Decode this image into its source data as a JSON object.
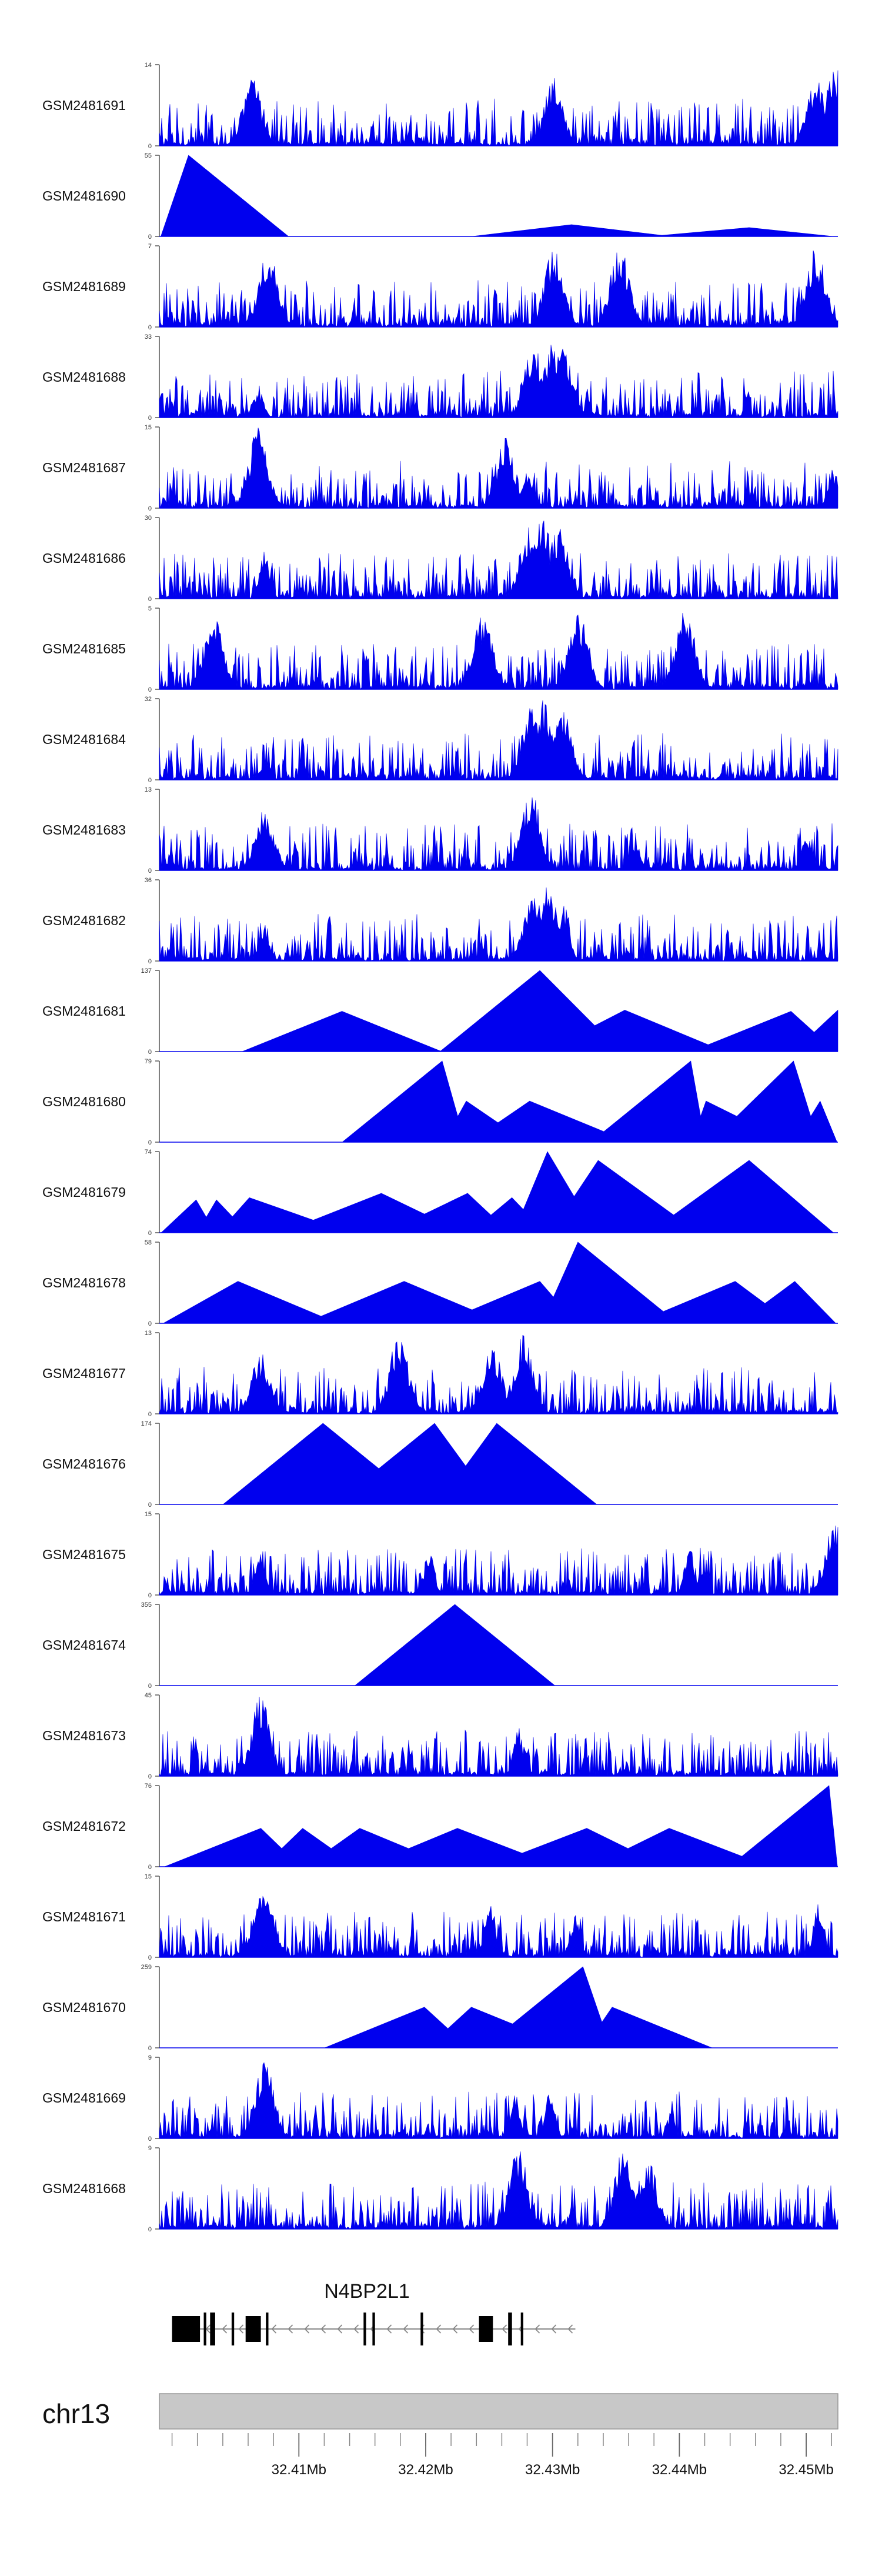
{
  "chart_data": {
    "type": "area",
    "title": "",
    "color": "#0000ee",
    "genome": {
      "chromosome": "chr13",
      "xlim_mb": [
        32.399,
        32.4525
      ],
      "xticks_mb": [
        32.41,
        32.42,
        32.43,
        32.44,
        32.45
      ],
      "xtick_labels": [
        "32.41Mb",
        "32.42Mb",
        "32.43Mb",
        "32.44Mb",
        "32.45Mb"
      ]
    },
    "tracks": [
      {
        "name": "GSM2481691",
        "ymax": 14,
        "ymin": 0,
        "peaks": [
          [
            32.4063,
            12
          ],
          [
            32.4301,
            12
          ],
          [
            32.4508,
            12
          ],
          [
            32.4523,
            14
          ]
        ],
        "dense": true
      },
      {
        "name": "GSM2481690",
        "ymax": 55,
        "ymin": 0,
        "peaks": [
          [
            32.4013,
            55
          ],
          [
            32.4315,
            8
          ],
          [
            32.4455,
            6
          ]
        ],
        "dense": false
      },
      {
        "name": "GSM2481689",
        "ymax": 7,
        "ymin": 0,
        "peaks": [
          [
            32.4076,
            7
          ],
          [
            32.4301,
            7
          ],
          [
            32.4353,
            7
          ],
          [
            32.4508,
            7
          ]
        ],
        "dense": true
      },
      {
        "name": "GSM2481688",
        "ymax": 33,
        "ymin": 0,
        "peaks": [
          [
            32.4068,
            12
          ],
          [
            32.4285,
            30
          ],
          [
            32.43,
            31
          ],
          [
            32.4308,
            29
          ]
        ],
        "dense": true
      },
      {
        "name": "GSM2481687",
        "ymax": 15,
        "ymin": 0,
        "peaks": [
          [
            32.4068,
            15
          ],
          [
            32.4263,
            13
          ],
          [
            32.4281,
            7
          ],
          [
            32.4521,
            8
          ]
        ],
        "dense": true
      },
      {
        "name": "GSM2481686",
        "ymax": 30,
        "ymin": 0,
        "peaks": [
          [
            32.4073,
            18
          ],
          [
            32.4282,
            29
          ],
          [
            32.4292,
            30
          ],
          [
            32.4305,
            27
          ]
        ],
        "dense": true
      },
      {
        "name": "GSM2481685",
        "ymax": 5,
        "ymin": 0,
        "peaks": [
          [
            32.4033,
            5
          ],
          [
            32.4245,
            5
          ],
          [
            32.432,
            5
          ],
          [
            32.4405,
            5
          ]
        ],
        "dense": true
      },
      {
        "name": "GSM2481684",
        "ymax": 32,
        "ymin": 0,
        "peaks": [
          [
            32.4073,
            8
          ],
          [
            32.4283,
            30
          ],
          [
            32.4292,
            32
          ],
          [
            32.4308,
            28
          ]
        ],
        "dense": true
      },
      {
        "name": "GSM2481683",
        "ymax": 13,
        "ymin": 0,
        "peaks": [
          [
            32.4073,
            10
          ],
          [
            32.4283,
            13
          ],
          [
            32.4365,
            5
          ],
          [
            32.45,
            6
          ]
        ],
        "dense": true
      },
      {
        "name": "GSM2481682",
        "ymax": 36,
        "ymin": 0,
        "peaks": [
          [
            32.4073,
            18
          ],
          [
            32.4285,
            30
          ],
          [
            32.4296,
            36
          ],
          [
            32.431,
            26
          ]
        ],
        "dense": true
      },
      {
        "name": "GSM2481681",
        "ymax": 137,
        "ymin": 0,
        "peaks": [
          [
            32.4134,
            68
          ],
          [
            32.429,
            137
          ],
          [
            32.4357,
            70
          ],
          [
            32.4488,
            68
          ],
          [
            32.4525,
            70
          ]
        ],
        "dense": false
      },
      {
        "name": "GSM2481680",
        "ymax": 79,
        "ymin": 0,
        "peaks": [
          [
            32.4213,
            79
          ],
          [
            32.4232,
            40
          ],
          [
            32.4282,
            40
          ],
          [
            32.4409,
            79
          ],
          [
            32.4421,
            40
          ],
          [
            32.449,
            79
          ],
          [
            32.4511,
            40
          ]
        ],
        "dense": false
      },
      {
        "name": "GSM2481679",
        "ymax": 74,
        "ymin": 0,
        "peaks": [
          [
            32.4019,
            30
          ],
          [
            32.4035,
            30
          ],
          [
            32.4061,
            32
          ],
          [
            32.4165,
            36
          ],
          [
            32.4233,
            36
          ],
          [
            32.4268,
            32
          ],
          [
            32.4296,
            74
          ],
          [
            32.4336,
            66
          ],
          [
            32.4455,
            66
          ]
        ],
        "dense": false
      },
      {
        "name": "GSM2481678",
        "ymax": 58,
        "ymin": 0,
        "peaks": [
          [
            32.4052,
            30
          ],
          [
            32.4183,
            30
          ],
          [
            32.429,
            30
          ],
          [
            32.432,
            58
          ],
          [
            32.4444,
            30
          ],
          [
            32.4491,
            30
          ]
        ],
        "dense": false
      },
      {
        "name": "GSM2481677",
        "ymax": 13,
        "ymin": 0,
        "peaks": [
          [
            32.407,
            10
          ],
          [
            32.4179,
            13
          ],
          [
            32.4253,
            11
          ],
          [
            32.4277,
            13
          ]
        ],
        "dense": true
      },
      {
        "name": "GSM2481676",
        "ymax": 174,
        "ymin": 0,
        "peaks": [
          [
            32.4119,
            174
          ],
          [
            32.4207,
            174
          ],
          [
            32.4256,
            174
          ]
        ],
        "dense": false
      },
      {
        "name": "GSM2481675",
        "ymax": 15,
        "ymin": 0,
        "peaks": [
          [
            32.407,
            9
          ],
          [
            32.4203,
            9
          ],
          [
            32.4408,
            9
          ],
          [
            32.4523,
            15
          ]
        ],
        "dense": true
      },
      {
        "name": "GSM2481674",
        "ymax": 355,
        "ymin": 0,
        "peaks": [
          [
            32.4223,
            355
          ]
        ],
        "dense": false
      },
      {
        "name": "GSM2481673",
        "ymax": 45,
        "ymin": 0,
        "peaks": [
          [
            32.407,
            45
          ],
          [
            32.4273,
            28
          ]
        ],
        "dense": true
      },
      {
        "name": "GSM2481672",
        "ymax": 76,
        "ymin": 0,
        "peaks": [
          [
            32.407,
            36
          ],
          [
            32.4103,
            36
          ],
          [
            32.4148,
            36
          ],
          [
            32.4225,
            36
          ],
          [
            32.4327,
            36
          ],
          [
            32.4392,
            36
          ],
          [
            32.4518,
            76
          ]
        ],
        "dense": false
      },
      {
        "name": "GSM2481671",
        "ymax": 15,
        "ymin": 0,
        "peaks": [
          [
            32.4073,
            15
          ],
          [
            32.425,
            11
          ],
          [
            32.4318,
            8
          ],
          [
            32.451,
            11
          ]
        ],
        "dense": true
      },
      {
        "name": "GSM2481670",
        "ymax": 259,
        "ymin": 0,
        "peaks": [
          [
            32.4199,
            130
          ],
          [
            32.4236,
            130
          ],
          [
            32.4324,
            259
          ],
          [
            32.4347,
            130
          ]
        ],
        "dense": false
      },
      {
        "name": "GSM2481669",
        "ymax": 9,
        "ymin": 0,
        "peaks": [
          [
            32.4073,
            9
          ],
          [
            32.427,
            5
          ],
          [
            32.4298,
            5
          ]
        ],
        "dense": true
      },
      {
        "name": "GSM2481668",
        "ymax": 9,
        "ymin": 0,
        "peaks": [
          [
            32.4273,
            9
          ],
          [
            32.4356,
            9
          ],
          [
            32.4375,
            8
          ]
        ],
        "dense": true
      }
    ],
    "gene": {
      "name": "N4BP2L1",
      "strand": "-",
      "start_mb": 32.4,
      "end_mb": 32.4318,
      "exons": [
        [
          32.4,
          32.4022
        ],
        [
          32.4025,
          32.4027
        ],
        [
          32.403,
          32.4034
        ],
        [
          32.4047,
          32.4049
        ],
        [
          32.4058,
          32.407
        ],
        [
          32.4074,
          32.4076
        ],
        [
          32.4151,
          32.4153
        ],
        [
          32.4158,
          32.416
        ],
        [
          32.4196,
          32.4198
        ],
        [
          32.4242,
          32.4253
        ],
        [
          32.4265,
          32.4268
        ],
        [
          32.4275,
          32.4277
        ]
      ]
    }
  }
}
